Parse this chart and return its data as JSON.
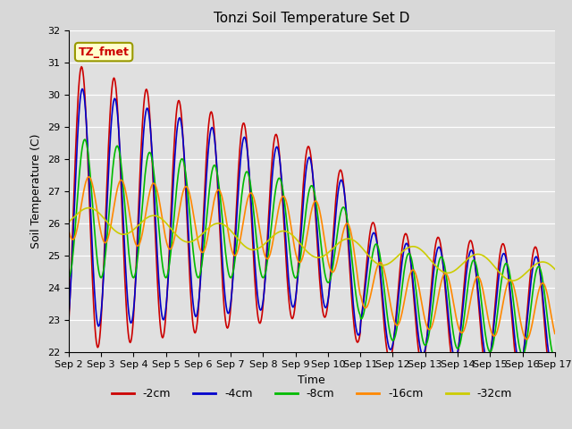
{
  "title": "Tonzi Soil Temperature Set D",
  "xlabel": "Time",
  "ylabel": "Soil Temperature (C)",
  "ylim": [
    22.0,
    32.0
  ],
  "yticks": [
    22.0,
    23.0,
    24.0,
    25.0,
    26.0,
    27.0,
    28.0,
    29.0,
    30.0,
    31.0,
    32.0
  ],
  "legend_label": "TZ_fmet",
  "series_labels": [
    "-2cm",
    "-4cm",
    "-8cm",
    "-16cm",
    "-32cm"
  ],
  "series_colors": [
    "#cc0000",
    "#0000cc",
    "#00bb00",
    "#ff8800",
    "#cccc00"
  ],
  "line_width": 1.2,
  "background_color": "#e0e0e0",
  "n_points": 720,
  "t_start": 0,
  "t_end": 15,
  "xtick_positions": [
    0,
    1,
    2,
    3,
    4,
    5,
    6,
    7,
    8,
    9,
    10,
    11,
    12,
    13,
    14,
    15
  ],
  "xtick_labels": [
    "Sep 2",
    "Sep 3",
    "Sep 4",
    "Sep 5",
    "Sep 6",
    "Sep 7",
    "Sep 8",
    "Sep 9",
    "Sep 10",
    "Sep 11",
    "Sep 12",
    "Sep 13",
    "Sep 14",
    "Sep 15",
    "Sep 16",
    "Sep 17"
  ]
}
